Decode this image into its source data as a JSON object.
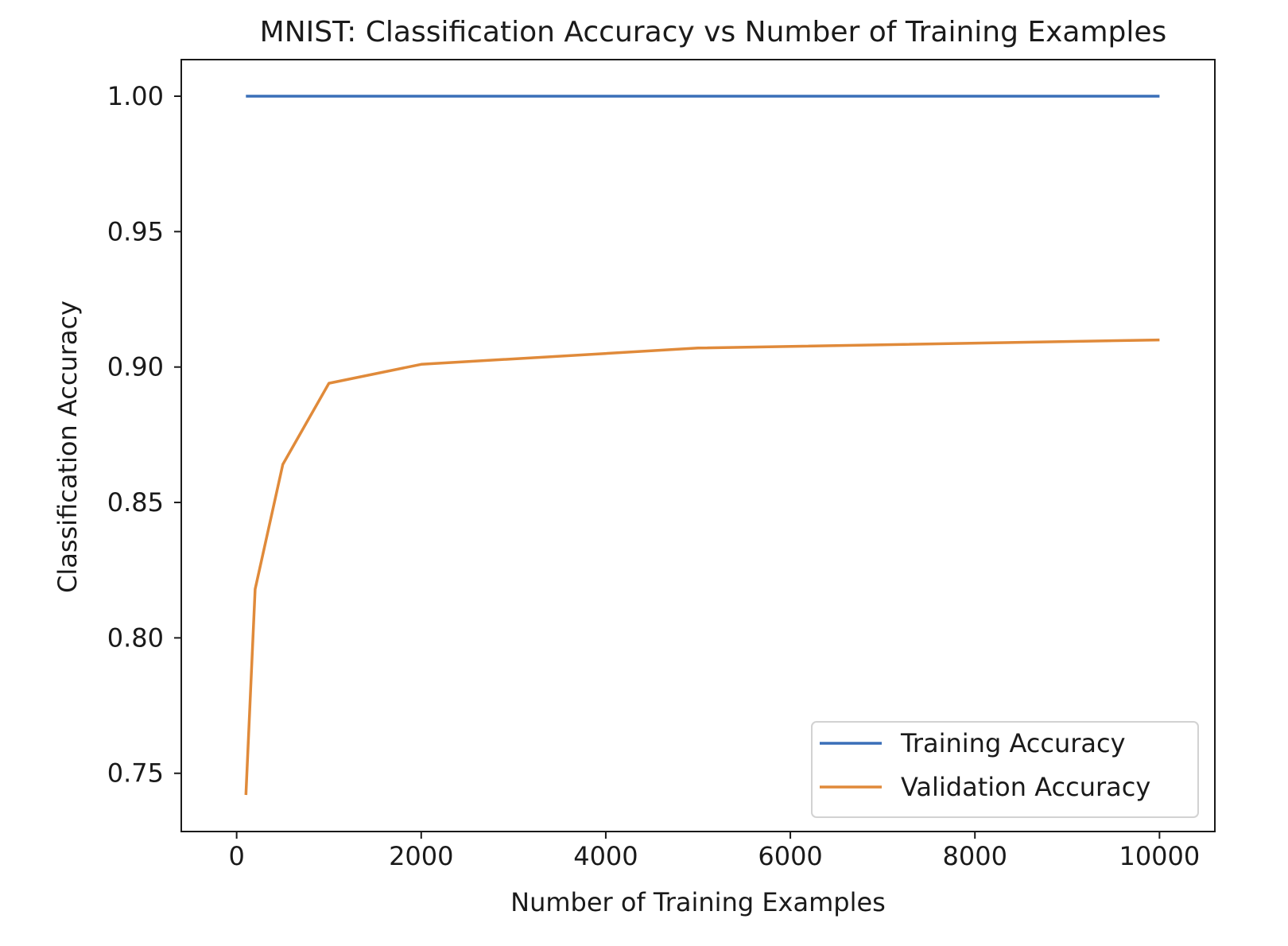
{
  "chart_data": {
    "type": "line",
    "title": "MNIST: Classification Accuracy vs Number of Training Examples",
    "xlabel": "Number of Training Examples",
    "ylabel": "Classification Accuracy",
    "xlim": [
      -600,
      10600
    ],
    "ylim": [
      0.7285,
      1.0135
    ],
    "xticks": [
      0,
      2000,
      4000,
      6000,
      8000,
      10000
    ],
    "xtick_labels": [
      "0",
      "2000",
      "4000",
      "6000",
      "8000",
      "10000"
    ],
    "yticks": [
      0.75,
      0.8,
      0.85,
      0.9,
      0.95,
      1.0
    ],
    "ytick_labels": [
      "0.75",
      "0.80",
      "0.85",
      "0.90",
      "0.95",
      "1.00"
    ],
    "grid": false,
    "legend_position": "lower-right",
    "series": [
      {
        "name": "Training Accuracy",
        "color": "#3a6fb8",
        "x": [
          100,
          200,
          500,
          1000,
          2000,
          5000,
          10000
        ],
        "y": [
          1.0,
          1.0,
          1.0,
          1.0,
          1.0,
          1.0,
          1.0
        ]
      },
      {
        "name": "Validation Accuracy",
        "color": "#e08a3a",
        "x": [
          100,
          200,
          500,
          1000,
          2000,
          5000,
          10000
        ],
        "y": [
          0.742,
          0.818,
          0.864,
          0.894,
          0.901,
          0.907,
          0.91
        ]
      }
    ]
  }
}
